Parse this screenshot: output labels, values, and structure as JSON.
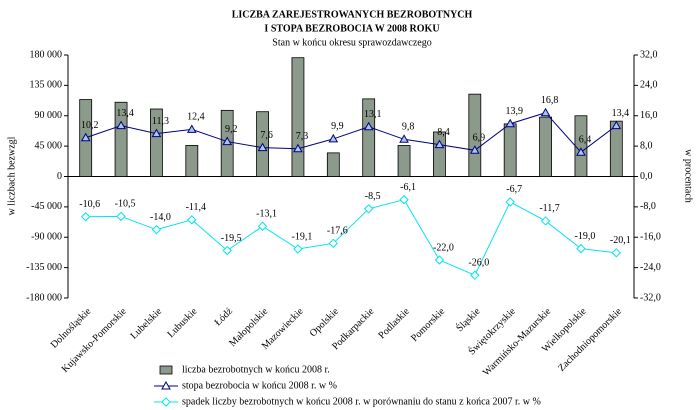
{
  "chart_data": {
    "type": "bar",
    "title": "LICZBA  ZAREJESTROWANYCH  BEZROBOTNYCH",
    "title_line2": "I  STOPA  BEZROBOCIA W  2008 ROKU",
    "subtitle": "Stan w końcu okresu  sprawozdawczego",
    "y_label": "w liczbach bezwzgl",
    "y2_label": "w procentach",
    "categories": [
      "Dolnośląskie",
      "Kujawsko-Pomorskie",
      "Lubelskie",
      "Lubuskie",
      "Łódź",
      "Małopolskie",
      "Mazowieckie",
      "Opolskie",
      "Podkarpackie",
      "Podlaskie",
      "Pomorskie",
      "Śląskie",
      "Świętokrzyskie",
      "Warmińsko-Mazurskie",
      "Wielkopolskie",
      "Zachodniopomorskie"
    ],
    "series": [
      {
        "name": "liczba bezrobotnych w końcu 2008 r.",
        "type": "bar",
        "color": "#8c9a8c",
        "axis": "y",
        "values": [
          114000,
          110000,
          100000,
          46000,
          98000,
          96000,
          176000,
          35000,
          115000,
          46000,
          66000,
          122000,
          78000,
          88000,
          90000,
          82000
        ]
      },
      {
        "name": "stopa bezrobocia w końcu 2008 r. w %",
        "type": "line",
        "color": "#000080",
        "axis": "y2",
        "values": [
          10.2,
          13.4,
          11.3,
          12.4,
          9.2,
          7.6,
          7.3,
          9.9,
          13.1,
          9.8,
          8.4,
          6.9,
          13.9,
          16.8,
          6.4,
          13.4
        ],
        "value_labels": [
          "10,2",
          "13,4",
          "11,3",
          "12,4",
          "9,2",
          "7,6",
          "7,3",
          "9,9",
          "13,1",
          "9,8",
          "8,4",
          "6,9",
          "13,9",
          "16,8",
          "6,4",
          "13,4"
        ]
      },
      {
        "name": "spadek liczby bezrobotnych w końcu 2008 r. w porównaniu do stanu z końca 2007 r. w %",
        "type": "line",
        "color": "#00e5ee",
        "axis": "y2",
        "values": [
          -10.6,
          -10.5,
          -14.0,
          -11.4,
          -19.5,
          -13.1,
          -19.1,
          -17.6,
          -8.5,
          -6.1,
          -22.0,
          -26.0,
          -6.7,
          -11.7,
          -19.0,
          -20.1
        ],
        "value_labels": [
          "-10,6",
          "-10,5",
          "-14,0",
          "-11,4",
          "-19,5",
          "-13,1",
          "-19,1",
          "-17,6",
          "-8,5",
          "-6,1",
          "-22,0",
          "-26,0",
          "-6,7",
          "-11,7",
          "-19,0",
          "-20,1"
        ]
      }
    ],
    "ylim": [
      -180000,
      180000
    ],
    "yticks": [
      {
        "value": -180000,
        "label": "-180 000"
      },
      {
        "value": -135000,
        "label": "-135 000"
      },
      {
        "value": -90000,
        "label": "-90 000"
      },
      {
        "value": -45000,
        "label": "-45 000"
      },
      0,
      {
        "value": 45000,
        "label": "45 000"
      },
      {
        "value": 90000,
        "label": "90 000"
      },
      {
        "value": 135000,
        "label": "135 000"
      },
      {
        "value": 180000,
        "label": "180 000"
      }
    ],
    "y2lim": [
      -32,
      32
    ],
    "y2ticks": [
      {
        "value": -32,
        "label": "-32,0"
      },
      {
        "value": -24,
        "label": "-24,0"
      },
      {
        "value": -16,
        "label": "-16,0"
      },
      {
        "value": -8,
        "label": "-8,0"
      },
      {
        "value": 0,
        "label": "0,0"
      },
      {
        "value": 8,
        "label": "8,0"
      },
      {
        "value": 16,
        "label": "16,0"
      },
      {
        "value": 24,
        "label": "24,0"
      },
      {
        "value": 32,
        "label": "32,0"
      }
    ]
  }
}
